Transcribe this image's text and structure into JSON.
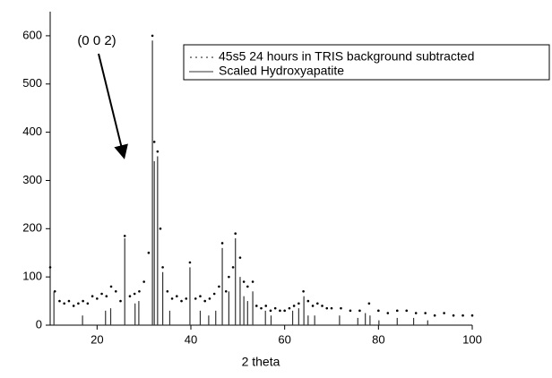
{
  "chart_data": {
    "type": "scatter",
    "xlabel": "2 theta",
    "annotations": [
      "(0 0 2)"
    ],
    "xlim": [
      10,
      100
    ],
    "ylim": [
      0,
      650
    ],
    "xticks": [
      20,
      40,
      60,
      80,
      100
    ],
    "yticks": [
      0,
      100,
      200,
      300,
      400,
      500,
      600
    ],
    "legend": "top-right",
    "series": [
      {
        "name": "45s5 24 hours in TRIS background subtracted",
        "type": "scatter",
        "color": "#000000",
        "x": [
          10,
          11,
          12,
          13,
          14,
          15,
          16,
          17,
          18,
          19,
          20,
          21,
          22,
          23,
          24,
          25,
          25.9,
          27,
          28,
          29,
          30,
          31,
          31.8,
          32.2,
          32.9,
          33.5,
          34,
          35,
          36,
          37,
          38,
          39,
          39.8,
          41,
          42,
          43,
          44,
          45,
          46,
          46.7,
          47.5,
          48.1,
          49,
          49.5,
          50.5,
          51.3,
          52.1,
          53.2,
          54,
          55,
          56,
          57,
          58,
          59,
          60,
          61,
          62,
          63,
          64,
          65,
          66,
          67,
          68,
          69,
          70,
          72,
          74,
          76,
          78,
          80,
          82,
          84,
          86,
          88,
          90,
          92,
          94,
          96,
          98,
          100
        ],
        "values": [
          120,
          70,
          50,
          45,
          50,
          40,
          45,
          50,
          45,
          60,
          55,
          65,
          60,
          80,
          70,
          50,
          185,
          60,
          65,
          70,
          90,
          150,
          600,
          380,
          360,
          200,
          120,
          70,
          55,
          60,
          50,
          55,
          130,
          55,
          60,
          50,
          55,
          65,
          80,
          170,
          70,
          100,
          120,
          190,
          140,
          90,
          80,
          90,
          40,
          35,
          40,
          30,
          35,
          30,
          30,
          35,
          40,
          45,
          70,
          50,
          40,
          45,
          40,
          35,
          35,
          35,
          30,
          30,
          45,
          30,
          25,
          30,
          30,
          25,
          25,
          20,
          25,
          20,
          20,
          20
        ]
      },
      {
        "name": "Scaled Hydroxyapatite",
        "type": "stick",
        "color": "#333333",
        "x": [
          10.8,
          16.9,
          21.8,
          22.9,
          25.9,
          28.1,
          28.9,
          31.8,
          32.2,
          32.9,
          34.0,
          35.5,
          39.8,
          42.0,
          43.8,
          45.3,
          46.7,
          48.1,
          49.5,
          50.5,
          51.3,
          52.1,
          53.2,
          55.9,
          57.1,
          61.7,
          63.0,
          64.1,
          65.0,
          66.4,
          71.7,
          75.6,
          77.2,
          78.2,
          80.1,
          84.0,
          87.5,
          90.5
        ],
        "values": [
          70,
          20,
          30,
          35,
          180,
          45,
          50,
          590,
          340,
          350,
          110,
          30,
          120,
          30,
          20,
          30,
          160,
          70,
          180,
          100,
          60,
          50,
          70,
          30,
          20,
          30,
          35,
          60,
          20,
          20,
          20,
          15,
          25,
          20,
          10,
          15,
          15,
          10
        ]
      }
    ]
  }
}
